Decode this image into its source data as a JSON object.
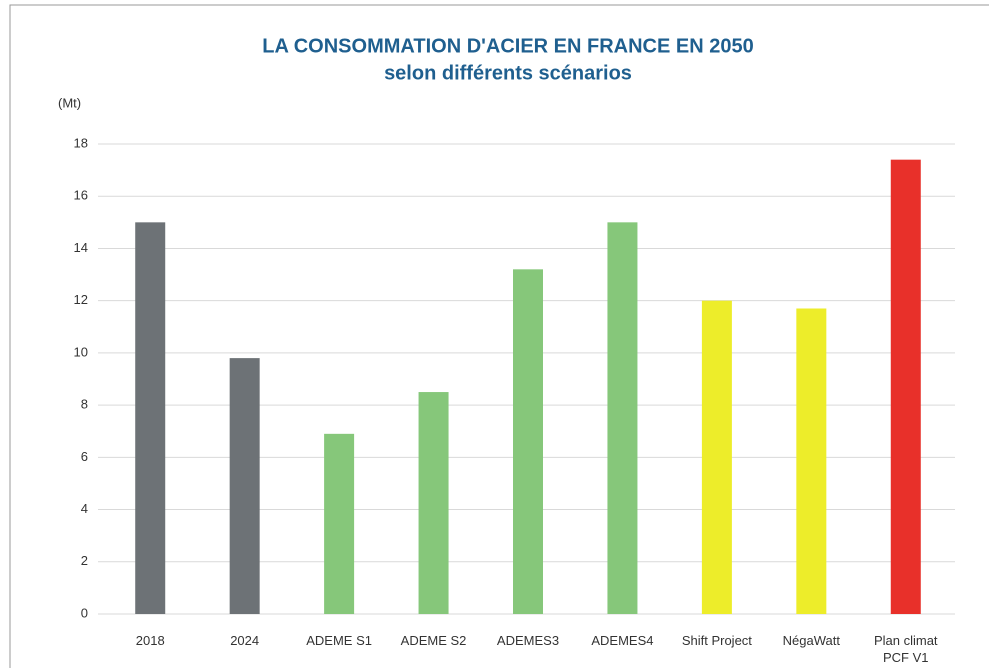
{
  "chart_data": {
    "type": "bar",
    "title": "LA CONSOMMATION D'ACIER EN FRANCE EN 2050",
    "subtitle": "selon différents scénarios",
    "y_label": "(Mt)",
    "categories": [
      "2018",
      "2024",
      "ADEME S1",
      "ADEME S2",
      "ADEMES3",
      "ADEMES4",
      "Shift Project",
      "NégaWatt",
      "Plan climat\nPCF V1"
    ],
    "values": [
      15,
      9.8,
      6.9,
      8.5,
      13.2,
      15,
      12,
      11.7,
      17.4
    ],
    "colors": [
      "#6d7276",
      "#6d7276",
      "#86c77a",
      "#86c77a",
      "#86c77a",
      "#86c77a",
      "#eded2a",
      "#eded2a",
      "#e8302a"
    ],
    "ylim": [
      0,
      18
    ],
    "yticks": [
      0,
      2,
      4,
      6,
      8,
      10,
      12,
      14,
      16,
      18
    ],
    "grid": true
  }
}
